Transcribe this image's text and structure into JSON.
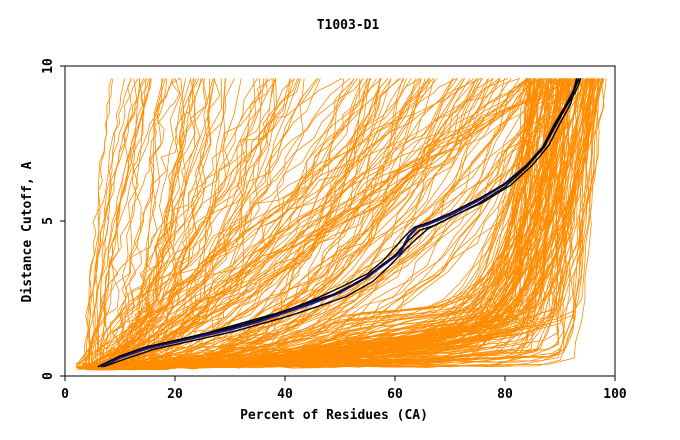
{
  "chart_data": {
    "type": "line",
    "title": "T1003-D1",
    "xlabel": "Percent of Residues (CA)",
    "ylabel": "Distance Cutoff, A",
    "xlim": [
      0,
      100
    ],
    "ylim": [
      0,
      10
    ],
    "xticks": [
      0,
      20,
      40,
      60,
      80,
      100
    ],
    "yticks": [
      0,
      5,
      10
    ],
    "grid": false,
    "colors": {
      "models": "#ff8c00",
      "highlight": "#1a1a8c",
      "reference": "#000000"
    },
    "series": [
      {
        "name": "highlight-model",
        "color": "#1a1a8c",
        "x": [
          6.5,
          10,
          15,
          20,
          25,
          30,
          35,
          40,
          45,
          50,
          55,
          58,
          61,
          62.5,
          64,
          66,
          70,
          75,
          80,
          84,
          87,
          89,
          91,
          92.5,
          93.2
        ],
        "y": [
          0.3,
          0.6,
          0.9,
          1.1,
          1.3,
          1.5,
          1.75,
          2.05,
          2.35,
          2.7,
          3.2,
          3.6,
          4.0,
          4.5,
          4.8,
          4.9,
          5.2,
          5.65,
          6.2,
          6.8,
          7.4,
          8.1,
          8.7,
          9.2,
          9.6
        ]
      },
      {
        "name": "reference-1",
        "color": "#000000",
        "x": [
          6,
          10,
          15,
          20,
          25,
          30,
          35,
          40,
          45,
          50,
          55,
          58,
          60,
          62,
          63.5,
          66,
          70,
          75,
          80,
          84,
          87,
          89,
          91,
          92.5,
          93.5
        ],
        "y": [
          0.3,
          0.65,
          0.95,
          1.15,
          1.35,
          1.55,
          1.8,
          2.1,
          2.45,
          2.85,
          3.3,
          3.75,
          4.15,
          4.55,
          4.8,
          4.95,
          5.25,
          5.7,
          6.2,
          6.8,
          7.4,
          8.1,
          8.7,
          9.2,
          9.6
        ]
      },
      {
        "name": "reference-2",
        "color": "#000000",
        "x": [
          7,
          11,
          16,
          21,
          26,
          31,
          36,
          41,
          46,
          51,
          56,
          59,
          62,
          64,
          66,
          70,
          75,
          80,
          84,
          87,
          89,
          91,
          92.8,
          93.8
        ],
        "y": [
          0.3,
          0.55,
          0.85,
          1.05,
          1.25,
          1.45,
          1.7,
          1.95,
          2.25,
          2.55,
          3.05,
          3.55,
          4.1,
          4.45,
          4.75,
          5.1,
          5.55,
          6.1,
          6.75,
          7.35,
          8.0,
          8.65,
          9.15,
          9.6
        ]
      },
      {
        "name": "reference-3",
        "color": "#000000",
        "x": [
          6,
          9.5,
          14,
          19,
          24,
          29,
          34,
          39,
          44,
          49,
          54,
          57,
          60,
          62,
          64.5,
          67,
          71,
          76,
          81,
          85,
          88,
          90,
          92,
          93
        ],
        "y": [
          0.3,
          0.6,
          0.9,
          1.1,
          1.3,
          1.55,
          1.8,
          2.05,
          2.35,
          2.65,
          3.1,
          3.5,
          3.9,
          4.3,
          4.7,
          4.85,
          5.2,
          5.6,
          6.15,
          6.8,
          7.45,
          8.15,
          8.8,
          9.6
        ]
      }
    ]
  }
}
